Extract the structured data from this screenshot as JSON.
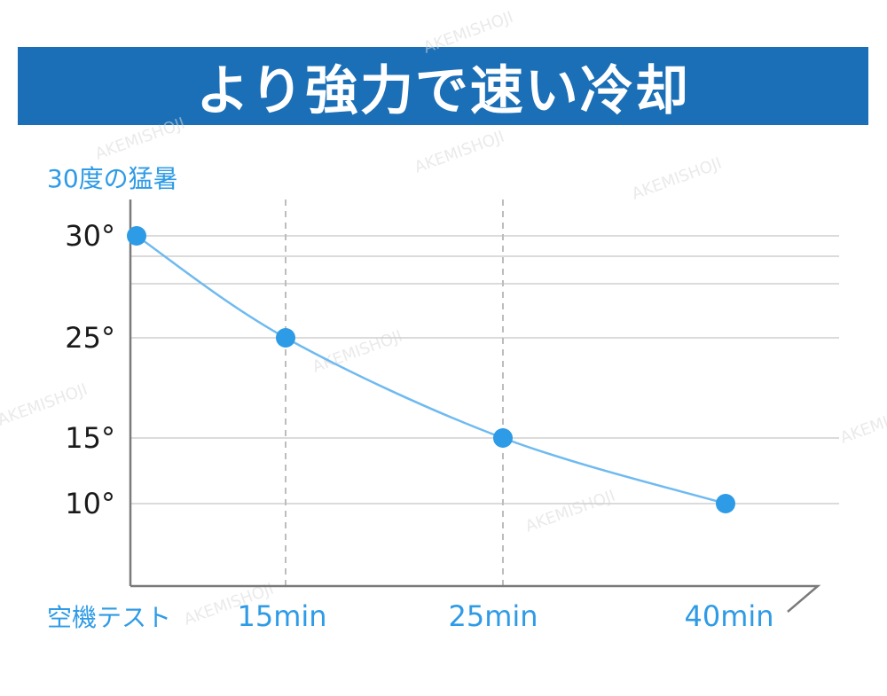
{
  "banner": {
    "title": "より強力で速い冷却"
  },
  "chart_data": {
    "type": "line",
    "title": "より強力で速い冷却",
    "subtitle": "30度の猛暑",
    "categories": [
      "空機テスト",
      "15min",
      "25min",
      "40min"
    ],
    "x": [
      0,
      15,
      25,
      40
    ],
    "values": [
      30,
      25,
      15,
      10
    ],
    "y_ticks": [
      {
        "value": 30,
        "label": "30°"
      },
      {
        "value": 25,
        "label": "25°"
      },
      {
        "value": 15,
        "label": "15°"
      },
      {
        "value": 10,
        "label": "10°"
      }
    ],
    "ylim": [
      6,
      32
    ],
    "grid": true,
    "colors": {
      "line": "#6fbaf0",
      "point": "#2e9be6",
      "banner": "#1b6fb7",
      "label": "#2e9be6"
    }
  },
  "watermark": "AKEMISHOJI"
}
